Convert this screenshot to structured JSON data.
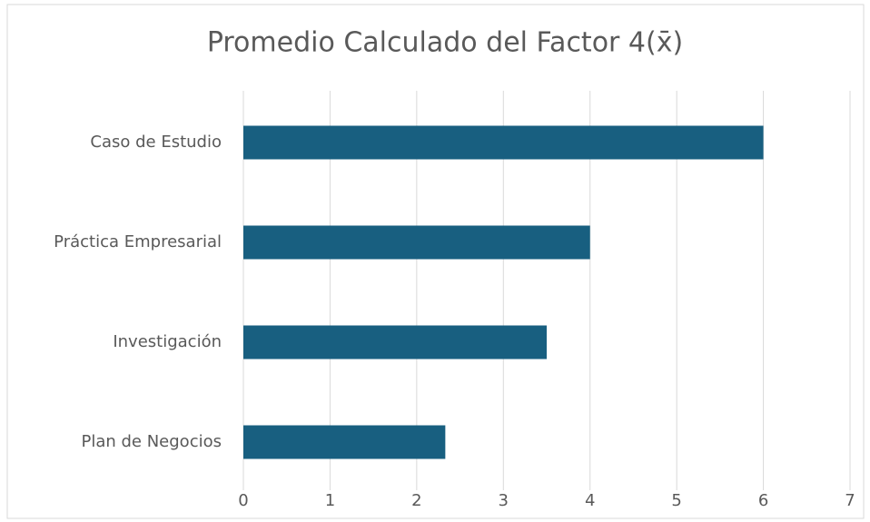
{
  "chart_data": {
    "type": "bar",
    "orientation": "horizontal",
    "title": "Promedio Calculado del Factor 4(x̄)",
    "categories": [
      "Caso de Estudio",
      "Práctica Empresarial",
      "Investigación",
      "Plan de Negocios"
    ],
    "values": [
      6,
      4,
      3.5,
      2.33
    ],
    "color": "#185f80",
    "xlim": [
      0,
      7
    ],
    "xticks": [
      0,
      1,
      2,
      3,
      4,
      5,
      6,
      7
    ],
    "grid": true
  }
}
